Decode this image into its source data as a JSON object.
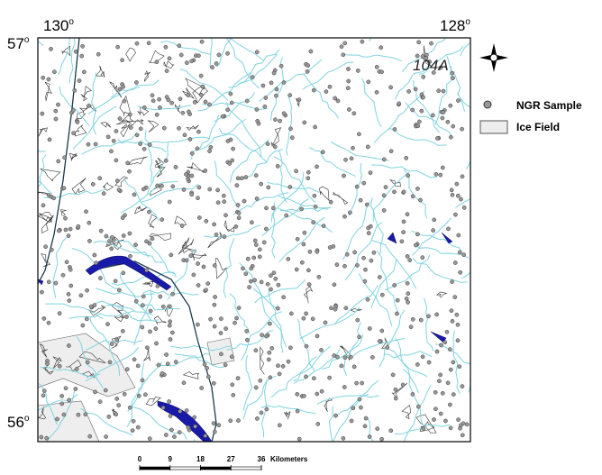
{
  "map": {
    "corners": [
      {
        "degree": "130",
        "mark": "o"
      },
      {
        "degree": "128",
        "mark": "o"
      },
      {
        "degree": "57",
        "mark": "o"
      },
      {
        "degree": "56",
        "mark": "o"
      }
    ],
    "sheet": "104A",
    "legend": [
      "NGR Sample",
      "Ice Field"
    ],
    "scale": {
      "ticks": [
        0,
        9,
        18,
        27,
        36
      ],
      "unit": "Kilometers"
    }
  }
}
